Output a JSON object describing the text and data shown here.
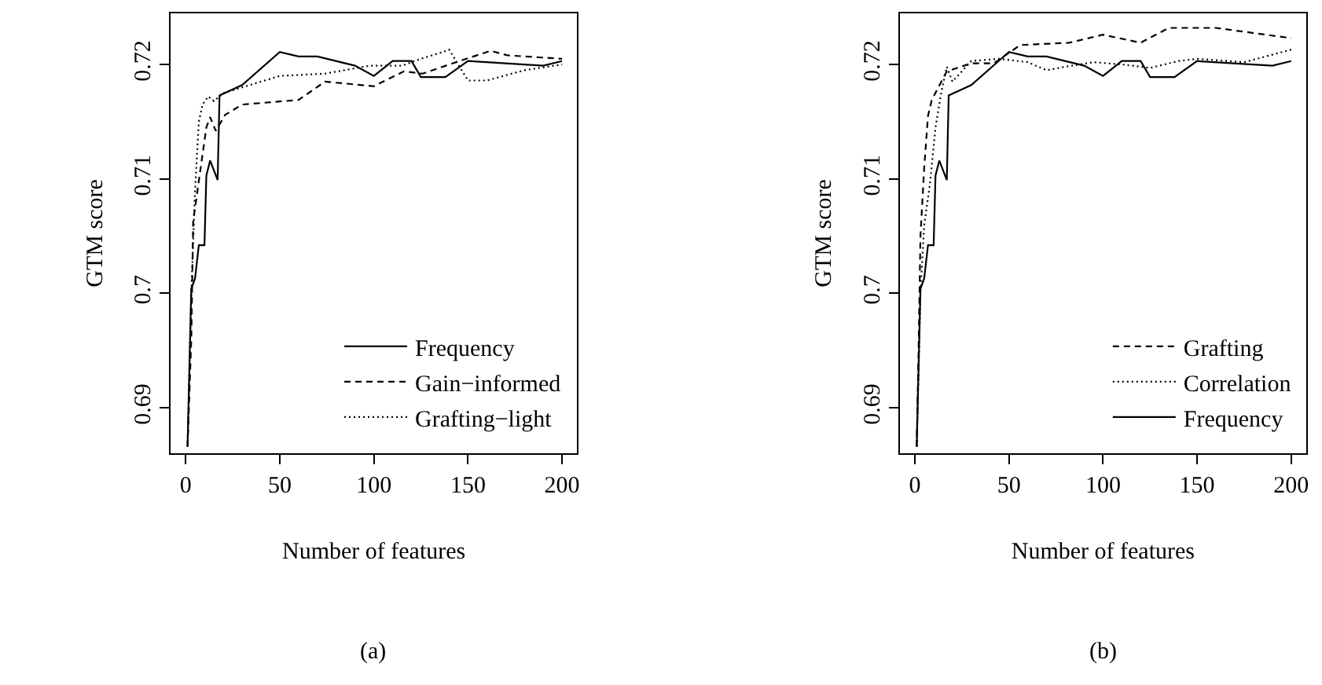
{
  "chart_data": [
    {
      "type": "line",
      "xlabel": "Number of features",
      "ylabel": "GTM score",
      "xlim": [
        -8,
        208
      ],
      "xticks": [
        0,
        50,
        100,
        150,
        200
      ],
      "ylim": [
        0.686,
        0.7245
      ],
      "yticks": [
        0.69,
        0.7,
        0.71,
        0.72
      ],
      "legend": "bottom right",
      "annotations": [
        "(a)"
      ],
      "series": [
        {
          "name": "Frequency",
          "color": "#000000",
          "line_style": "solid",
          "x": [
            1,
            2,
            3,
            5,
            7,
            10,
            11,
            13,
            17,
            18,
            30,
            50,
            60,
            70,
            90,
            100,
            110,
            120,
            125,
            138,
            150,
            190,
            200
          ],
          "values": [
            0.6866,
            0.6935,
            0.7004,
            0.7013,
            0.7042,
            0.7042,
            0.7103,
            0.7116,
            0.7099,
            0.7173,
            0.7182,
            0.7211,
            0.7207,
            0.7207,
            0.7199,
            0.719,
            0.7203,
            0.7203,
            0.7189,
            0.7189,
            0.7203,
            0.7199,
            0.7203
          ]
        },
        {
          "name": "Gain−informed",
          "color": "#000000",
          "line_style": "dashed",
          "x": [
            1,
            3,
            4,
            11,
            13,
            16,
            21,
            30,
            60,
            74,
            100,
            116,
            126,
            140,
            162,
            171,
            200
          ],
          "values": [
            0.6866,
            0.696,
            0.7063,
            0.7145,
            0.7154,
            0.7142,
            0.7156,
            0.7165,
            0.7169,
            0.7185,
            0.7181,
            0.7194,
            0.7192,
            0.72,
            0.7212,
            0.7208,
            0.7205
          ]
        },
        {
          "name": "Grafting−light",
          "color": "#000000",
          "line_style": "dotted",
          "x": [
            1,
            3,
            5,
            7,
            9,
            12,
            15,
            20,
            30,
            50,
            74,
            98,
            115,
            125,
            135,
            140,
            150,
            160,
            180,
            200
          ],
          "values": [
            0.6866,
            0.7,
            0.709,
            0.715,
            0.7165,
            0.7172,
            0.7168,
            0.7175,
            0.718,
            0.719,
            0.7192,
            0.7199,
            0.7199,
            0.7205,
            0.721,
            0.7213,
            0.7186,
            0.7186,
            0.7195,
            0.72
          ]
        }
      ]
    },
    {
      "type": "line",
      "xlabel": "Number of features",
      "ylabel": "GTM score",
      "xlim": [
        -8,
        208
      ],
      "xticks": [
        0,
        50,
        100,
        150,
        200
      ],
      "ylim": [
        0.686,
        0.7245
      ],
      "yticks": [
        0.69,
        0.7,
        0.71,
        0.72
      ],
      "legend": "bottom right",
      "annotations": [
        "(b)"
      ],
      "series": [
        {
          "name": "Grafting",
          "color": "#000000",
          "line_style": "dashed",
          "x": [
            1,
            2,
            3,
            5,
            7,
            9,
            17,
            30,
            42,
            56,
            82,
            100,
            120,
            135,
            160,
            200
          ],
          "values": [
            0.6866,
            0.695,
            0.705,
            0.711,
            0.7155,
            0.7169,
            0.7194,
            0.7201,
            0.7201,
            0.7217,
            0.7219,
            0.7226,
            0.7219,
            0.7232,
            0.7232,
            0.7223
          ]
        },
        {
          "name": "Correlation",
          "color": "#000000",
          "line_style": "dotted",
          "x": [
            1,
            3,
            5,
            8,
            11,
            14,
            17,
            20,
            30,
            45,
            60,
            70,
            80,
            95,
            110,
            125,
            140,
            150,
            175,
            200
          ],
          "values": [
            0.6866,
            0.7,
            0.706,
            0.7095,
            0.7145,
            0.7175,
            0.7198,
            0.7185,
            0.7203,
            0.7205,
            0.7202,
            0.7195,
            0.7198,
            0.7202,
            0.72,
            0.7197,
            0.7203,
            0.7205,
            0.7202,
            0.7213
          ]
        },
        {
          "name": "Frequency",
          "color": "#000000",
          "line_style": "solid",
          "x": [
            1,
            2,
            3,
            5,
            7,
            10,
            11,
            13,
            17,
            18,
            30,
            50,
            60,
            70,
            90,
            100,
            110,
            120,
            125,
            138,
            150,
            190,
            200
          ],
          "values": [
            0.6866,
            0.6935,
            0.7004,
            0.7013,
            0.7042,
            0.7042,
            0.7103,
            0.7116,
            0.7099,
            0.7173,
            0.7182,
            0.7211,
            0.7207,
            0.7207,
            0.7199,
            0.719,
            0.7203,
            0.7203,
            0.7189,
            0.7189,
            0.7203,
            0.7199,
            0.7203
          ]
        }
      ]
    }
  ]
}
